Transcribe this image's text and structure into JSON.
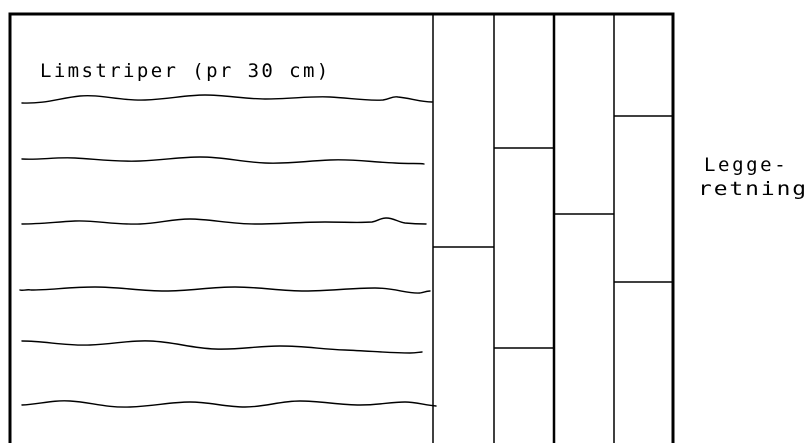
{
  "labels": {
    "glue_title": "Limstriper (pr 30 cm)",
    "direction_line1": "Legge-",
    "direction_line2": "retning"
  },
  "colors": {
    "stroke": "#000000",
    "background": "#ffffff"
  }
}
